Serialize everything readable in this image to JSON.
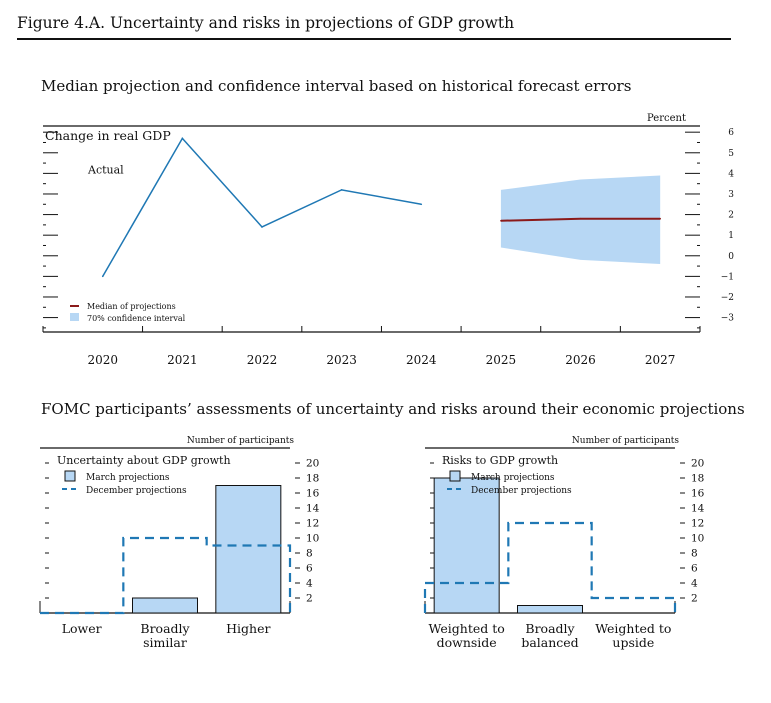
{
  "figure": {
    "title": "Figure 4.A. Uncertainty and risks in projections of GDP growth",
    "top_subtitle": "Median projection and confidence interval based on historical forecast errors",
    "bottom_subtitle": "FOMC participants’ assessments of uncertainty and risks around their economic projections"
  },
  "chart_data": [
    {
      "type": "line",
      "title": "Change in real GDP",
      "unit_label": "Percent",
      "x": [
        2020,
        2021,
        2022,
        2023,
        2024,
        2025,
        2026,
        2027
      ],
      "x_tick_labels": [
        "2020",
        "2021",
        "2022",
        "2023",
        "2024",
        "2025",
        "2026",
        "2027"
      ],
      "y_ticks": [
        6,
        5,
        4,
        3,
        2,
        1,
        0,
        -1,
        -2,
        -3
      ],
      "y_tick_labels": [
        "6",
        "5",
        "4",
        "3",
        "2",
        "1",
        "0",
        "−1",
        "−2",
        "−3"
      ],
      "ylim": [
        -3.7,
        6.3
      ],
      "series": [
        {
          "name": "Actual",
          "x": [
            2020,
            2021,
            2022,
            2023,
            2024
          ],
          "values": [
            -1.0,
            5.7,
            1.4,
            3.2,
            2.5
          ],
          "color": "#1f78b4"
        },
        {
          "name": "Median of projections",
          "x": [
            2025,
            2026,
            2027
          ],
          "values": [
            1.7,
            1.8,
            1.8
          ],
          "color": "#8b1a1a"
        }
      ],
      "band": {
        "name": "70% confidence interval",
        "x": [
          2025,
          2026,
          2027
        ],
        "lower": [
          0.4,
          -0.2,
          -0.4
        ],
        "upper": [
          3.2,
          3.7,
          3.9
        ],
        "color": "#b7d7f4"
      },
      "legend": [
        {
          "label": "Median of projections",
          "kind": "line",
          "color": "#8b1a1a"
        },
        {
          "label": "70% confidence interval",
          "kind": "box",
          "color": "#b7d7f4"
        }
      ],
      "annotations": [
        {
          "label": "Actual"
        }
      ]
    },
    {
      "type": "bar",
      "title": "Uncertainty about GDP growth",
      "unit_label": "Number of participants",
      "categories": [
        "Lower",
        "Broadly similar",
        "Higher"
      ],
      "y_ticks": [
        2,
        4,
        6,
        8,
        10,
        12,
        14,
        16,
        18,
        20
      ],
      "ylim": [
        0,
        22
      ],
      "series": [
        {
          "name": "March projections",
          "values": [
            0,
            2,
            17
          ],
          "style": "filled"
        },
        {
          "name": "December projections",
          "values": [
            0,
            10,
            9
          ],
          "style": "dashed"
        }
      ]
    },
    {
      "type": "bar",
      "title": "Risks to GDP growth",
      "unit_label": "Number of participants",
      "categories": [
        "Weighted to downside",
        "Broadly balanced",
        "Weighted to upside"
      ],
      "y_ticks": [
        2,
        4,
        6,
        8,
        10,
        12,
        14,
        16,
        18,
        20
      ],
      "ylim": [
        0,
        22
      ],
      "series": [
        {
          "name": "March projections",
          "values": [
            18,
            1,
            0
          ],
          "style": "filled"
        },
        {
          "name": "December projections",
          "values": [
            4,
            12,
            2
          ],
          "style": "dashed"
        }
      ]
    }
  ]
}
